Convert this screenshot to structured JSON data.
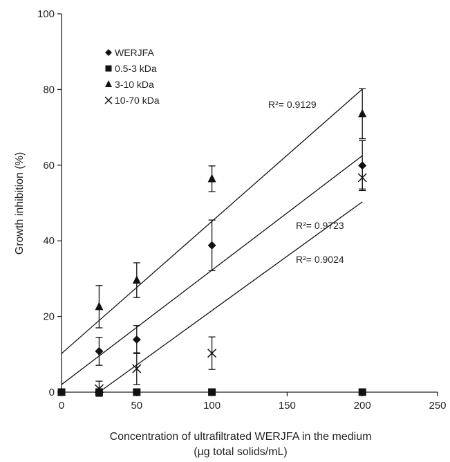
{
  "chart_data": {
    "type": "scatter",
    "title": "",
    "xlabel": "Concentration of ultrafiltrated WERJFA in the medium",
    "xlabel_line2": "(µg total solids/mL)",
    "ylabel": "Growth inhibition (%)",
    "xlim": [
      0,
      250
    ],
    "ylim": [
      0,
      100
    ],
    "xticks": [
      0,
      50,
      100,
      150,
      200,
      250
    ],
    "yticks": [
      0,
      20,
      40,
      60,
      80,
      100
    ],
    "grid": false,
    "legend_position": "top-left",
    "series": [
      {
        "name": "WERJFA",
        "marker": "diamond",
        "x": [
          0,
          25,
          50,
          100,
          200
        ],
        "y": [
          0,
          10.8,
          13.9,
          38.8,
          59.9
        ],
        "err": [
          0,
          3.7,
          3.7,
          6.7,
          6.6
        ],
        "fit": {
          "x0": 0,
          "y0": 2.0,
          "x1": 200,
          "y1": 62.5
        },
        "r2_label": "R²= 0.9723"
      },
      {
        "name": "0.5-3 kDa",
        "marker": "square",
        "x": [
          0,
          25,
          50,
          100,
          200
        ],
        "y": [
          0,
          0,
          0,
          0,
          0
        ],
        "err": [
          0,
          0,
          0,
          0,
          0
        ],
        "fit": null,
        "r2_label": ""
      },
      {
        "name": "3-10 kDa",
        "marker": "triangle",
        "x": [
          0,
          25,
          50,
          100,
          200
        ],
        "y": [
          0,
          22.6,
          29.6,
          56.4,
          73.6
        ],
        "err": [
          0,
          5.6,
          4.6,
          3.4,
          6.6
        ],
        "fit": {
          "x0": 0,
          "y0": 10.2,
          "x1": 200,
          "y1": 80.1
        },
        "r2_label": "R²= 0.9129"
      },
      {
        "name": "10-70 kDa",
        "marker": "cross",
        "x": [
          25,
          50,
          100,
          200
        ],
        "y": [
          0.9,
          6.2,
          10.3,
          56.7
        ],
        "err": [
          2.0,
          4.2,
          4.3,
          3.0
        ],
        "fit": {
          "x0": 25,
          "y0": 0,
          "x1": 200,
          "y1": 50.3
        },
        "r2_label": "R²= 0.9024"
      }
    ]
  }
}
